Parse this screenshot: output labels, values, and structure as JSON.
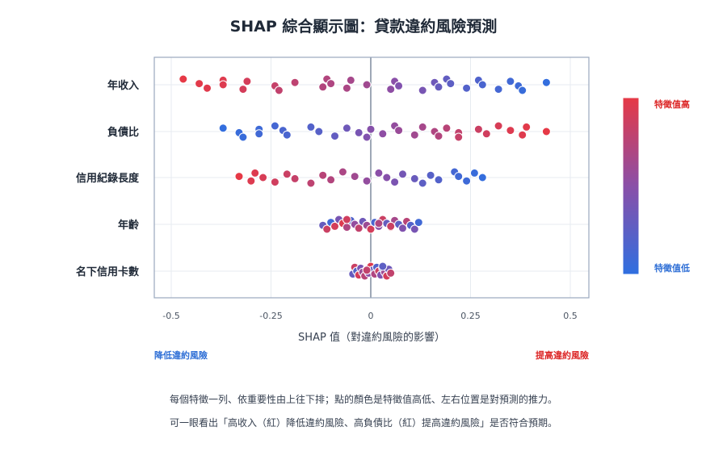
{
  "title": "SHAP 綜合顯示圖：貸款違約風險預測",
  "xlabel": "SHAP 值（對違約風險的影響）",
  "left_direction": "降低違約風險",
  "right_direction": "提高違約風險",
  "colorbar": {
    "high_label": "特徵值高",
    "low_label": "特徵值低",
    "high_color": "#e63946",
    "low_color": "#2f6fe0"
  },
  "caption": [
    "每個特徵一列、依重要性由上往下排；點的顏色是特徵值高低、左右位置是對預測的推力。",
    "可一眼看出「高收入（紅）降低違約風險、高負債比（紅）提高違約風險」是否符合預期。"
  ],
  "chart_data": {
    "type": "scatter",
    "title": "SHAP 綜合顯示圖：貸款違約風險預測",
    "xlabel": "SHAP 值（對違約風險的影響）",
    "ylabel": "",
    "xlim": [
      -0.5,
      0.5
    ],
    "xticks": [
      -0.5,
      -0.25,
      0,
      0.25,
      0.5
    ],
    "xtick_labels": [
      "-0.5",
      "-0.25",
      "0",
      "0.25",
      "0.5"
    ],
    "grid": true,
    "features": [
      {
        "name": "年收入",
        "points": [
          {
            "x": -0.47,
            "v": 1.0
          },
          {
            "x": -0.43,
            "v": 0.98
          },
          {
            "x": -0.41,
            "v": 0.97
          },
          {
            "x": -0.37,
            "v": 0.96
          },
          {
            "x": -0.37,
            "v": 0.95
          },
          {
            "x": -0.32,
            "v": 0.9
          },
          {
            "x": -0.31,
            "v": 0.9
          },
          {
            "x": -0.24,
            "v": 0.82
          },
          {
            "x": -0.23,
            "v": 0.8
          },
          {
            "x": -0.19,
            "v": 0.78
          },
          {
            "x": -0.12,
            "v": 0.72
          },
          {
            "x": -0.11,
            "v": 0.72
          },
          {
            "x": -0.1,
            "v": 0.7
          },
          {
            "x": -0.06,
            "v": 0.68
          },
          {
            "x": -0.05,
            "v": 0.65
          },
          {
            "x": -0.01,
            "v": 0.62
          },
          {
            "x": 0.05,
            "v": 0.52
          },
          {
            "x": 0.06,
            "v": 0.5
          },
          {
            "x": 0.07,
            "v": 0.45
          },
          {
            "x": 0.13,
            "v": 0.4
          },
          {
            "x": 0.16,
            "v": 0.35
          },
          {
            "x": 0.17,
            "v": 0.3
          },
          {
            "x": 0.19,
            "v": 0.28
          },
          {
            "x": 0.2,
            "v": 0.25
          },
          {
            "x": 0.24,
            "v": 0.2
          },
          {
            "x": 0.27,
            "v": 0.18
          },
          {
            "x": 0.28,
            "v": 0.15
          },
          {
            "x": 0.32,
            "v": 0.12
          },
          {
            "x": 0.35,
            "v": 0.1
          },
          {
            "x": 0.37,
            "v": 0.08
          },
          {
            "x": 0.38,
            "v": 0.05
          },
          {
            "x": 0.44,
            "v": 0.02
          }
        ]
      },
      {
        "name": "負債比",
        "points": [
          {
            "x": -0.37,
            "v": 0.02
          },
          {
            "x": -0.33,
            "v": 0.05
          },
          {
            "x": -0.32,
            "v": 0.05
          },
          {
            "x": -0.28,
            "v": 0.08
          },
          {
            "x": -0.28,
            "v": 0.1
          },
          {
            "x": -0.24,
            "v": 0.12
          },
          {
            "x": -0.22,
            "v": 0.15
          },
          {
            "x": -0.21,
            "v": 0.15
          },
          {
            "x": -0.15,
            "v": 0.2
          },
          {
            "x": -0.13,
            "v": 0.22
          },
          {
            "x": -0.09,
            "v": 0.28
          },
          {
            "x": -0.06,
            "v": 0.35
          },
          {
            "x": -0.03,
            "v": 0.4
          },
          {
            "x": -0.01,
            "v": 0.45
          },
          {
            "x": 0.0,
            "v": 0.48
          },
          {
            "x": 0.03,
            "v": 0.52
          },
          {
            "x": 0.06,
            "v": 0.55
          },
          {
            "x": 0.07,
            "v": 0.58
          },
          {
            "x": 0.11,
            "v": 0.62
          },
          {
            "x": 0.13,
            "v": 0.65
          },
          {
            "x": 0.16,
            "v": 0.7
          },
          {
            "x": 0.17,
            "v": 0.72
          },
          {
            "x": 0.19,
            "v": 0.75
          },
          {
            "x": 0.22,
            "v": 0.8
          },
          {
            "x": 0.22,
            "v": 0.82
          },
          {
            "x": 0.27,
            "v": 0.85
          },
          {
            "x": 0.29,
            "v": 0.88
          },
          {
            "x": 0.32,
            "v": 0.92
          },
          {
            "x": 0.35,
            "v": 0.95
          },
          {
            "x": 0.38,
            "v": 0.96
          },
          {
            "x": 0.39,
            "v": 0.98
          },
          {
            "x": 0.44,
            "v": 1.0
          }
        ]
      },
      {
        "name": "信用紀錄長度",
        "points": [
          {
            "x": -0.33,
            "v": 1.0
          },
          {
            "x": -0.3,
            "v": 0.95
          },
          {
            "x": -0.29,
            "v": 0.95
          },
          {
            "x": -0.27,
            "v": 0.92
          },
          {
            "x": -0.24,
            "v": 0.88
          },
          {
            "x": -0.21,
            "v": 0.85
          },
          {
            "x": -0.19,
            "v": 0.82
          },
          {
            "x": -0.15,
            "v": 0.78
          },
          {
            "x": -0.12,
            "v": 0.75
          },
          {
            "x": -0.1,
            "v": 0.72
          },
          {
            "x": -0.07,
            "v": 0.68
          },
          {
            "x": -0.04,
            "v": 0.62
          },
          {
            "x": -0.01,
            "v": 0.55
          },
          {
            "x": 0.02,
            "v": 0.5
          },
          {
            "x": 0.04,
            "v": 0.48
          },
          {
            "x": 0.06,
            "v": 0.42
          },
          {
            "x": 0.08,
            "v": 0.38
          },
          {
            "x": 0.11,
            "v": 0.32
          },
          {
            "x": 0.13,
            "v": 0.25
          },
          {
            "x": 0.15,
            "v": 0.22
          },
          {
            "x": 0.17,
            "v": 0.2
          },
          {
            "x": 0.21,
            "v": 0.12
          },
          {
            "x": 0.22,
            "v": 0.1
          },
          {
            "x": 0.24,
            "v": 0.08
          },
          {
            "x": 0.26,
            "v": 0.05
          },
          {
            "x": 0.28,
            "v": 0.03
          }
        ]
      },
      {
        "name": "年齡",
        "points": [
          {
            "x": -0.12,
            "v": 0.3
          },
          {
            "x": -0.11,
            "v": 0.85
          },
          {
            "x": -0.1,
            "v": 0.1
          },
          {
            "x": -0.09,
            "v": 0.9
          },
          {
            "x": -0.08,
            "v": 0.4
          },
          {
            "x": -0.07,
            "v": 0.95
          },
          {
            "x": -0.06,
            "v": 0.7
          },
          {
            "x": -0.05,
            "v": 0.2
          },
          {
            "x": -0.04,
            "v": 0.55
          },
          {
            "x": -0.03,
            "v": 0.8
          },
          {
            "x": -0.02,
            "v": 0.35
          },
          {
            "x": -0.01,
            "v": 0.6
          },
          {
            "x": 0.0,
            "v": 0.9
          },
          {
            "x": 0.01,
            "v": 0.15
          },
          {
            "x": 0.02,
            "v": 0.5
          },
          {
            "x": 0.03,
            "v": 0.85
          },
          {
            "x": 0.04,
            "v": 0.3
          },
          {
            "x": 0.05,
            "v": 0.95
          },
          {
            "x": 0.06,
            "v": 0.65
          },
          {
            "x": 0.07,
            "v": 0.25
          },
          {
            "x": 0.08,
            "v": 0.45
          },
          {
            "x": 0.09,
            "v": 0.75
          },
          {
            "x": 0.1,
            "v": 0.2
          },
          {
            "x": 0.11,
            "v": 0.4
          },
          {
            "x": 0.12,
            "v": 0.1
          },
          {
            "x": 0.05,
            "v": 0.85
          },
          {
            "x": -0.06,
            "v": 0.88
          },
          {
            "x": 0.02,
            "v": 0.7
          }
        ]
      },
      {
        "name": "名下信用卡數",
        "points": [
          {
            "x": -0.045,
            "v": 0.3
          },
          {
            "x": -0.04,
            "v": 0.85
          },
          {
            "x": -0.035,
            "v": 0.2
          },
          {
            "x": -0.03,
            "v": 0.9
          },
          {
            "x": -0.025,
            "v": 0.4
          },
          {
            "x": -0.02,
            "v": 0.6
          },
          {
            "x": -0.015,
            "v": 0.75
          },
          {
            "x": -0.01,
            "v": 0.1
          },
          {
            "x": -0.005,
            "v": 0.5
          },
          {
            "x": 0.0,
            "v": 0.95
          },
          {
            "x": 0.005,
            "v": 0.3
          },
          {
            "x": 0.01,
            "v": 0.7
          },
          {
            "x": 0.015,
            "v": 0.2
          },
          {
            "x": 0.02,
            "v": 0.85
          },
          {
            "x": 0.025,
            "v": 0.45
          },
          {
            "x": 0.03,
            "v": 0.15
          },
          {
            "x": 0.035,
            "v": 0.6
          },
          {
            "x": 0.04,
            "v": 0.9
          },
          {
            "x": 0.045,
            "v": 0.35
          },
          {
            "x": 0.05,
            "v": 0.8
          },
          {
            "x": 0.03,
            "v": 0.25
          },
          {
            "x": -0.01,
            "v": 0.8
          }
        ]
      }
    ]
  }
}
